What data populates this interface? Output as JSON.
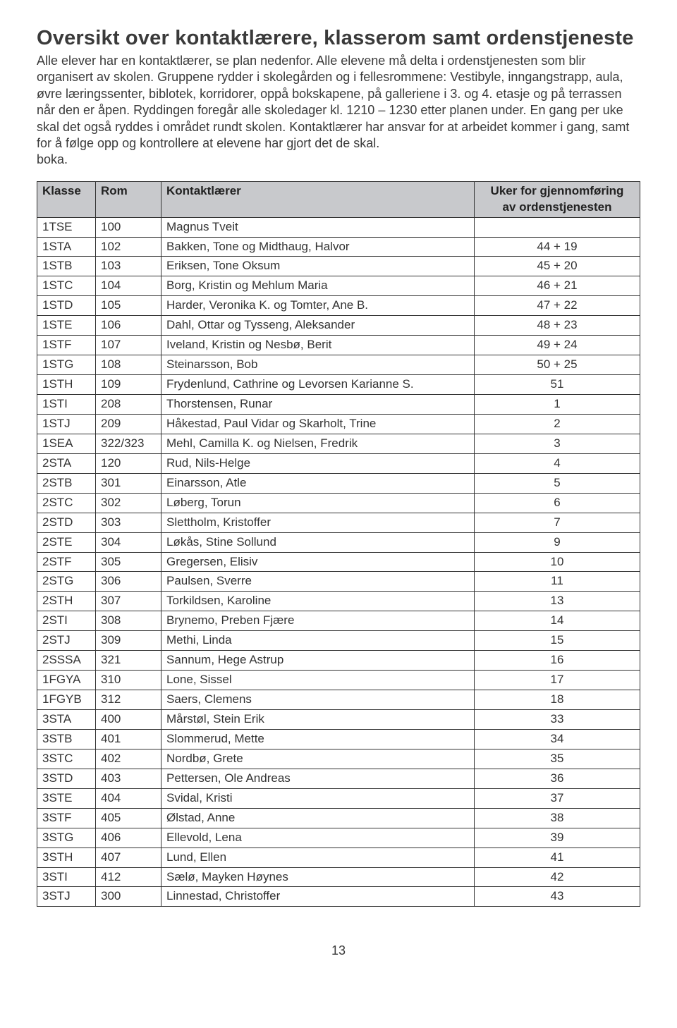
{
  "title": "Oversikt over kontaktlærere, klasserom samt ordenstjeneste",
  "paragraph": "Alle elever har en kontaktlærer, se plan nedenfor. Alle elevene må delta i ordenstjenesten som blir organisert av skolen. Gruppene rydder i skolegården og i fellesrommene: Vestibyle, inngangstrapp, aula, øvre læringssenter, biblotek, korridorer, oppå bokskapene, på galleriene i 3. og 4. etasje og på terrassen når den er åpen. Ryddingen foregår alle skoledager kl. 1210 – 1230 etter planen under. En gang per uke skal det også ryddes i området rundt skolen. Kontaktlærer har ansvar for at arbeidet kommer i gang, samt for å følge opp og kontrollere at elevene har gjort det de skal.",
  "paragraph_last": "boka.",
  "table": {
    "headers": {
      "klasse": "Klasse",
      "rom": "Rom",
      "laerer": "Kontaktlærer",
      "uker_l1": "Uker for gjennomføring",
      "uker_l2": "av ordenstjenesten"
    },
    "header_bg": "#c8c9cc",
    "border_color": "#333333",
    "rows": [
      {
        "klasse": "1TSE",
        "rom": "100",
        "laerer": "Magnus Tveit",
        "uker": ""
      },
      {
        "klasse": "1STA",
        "rom": "102",
        "laerer": "Bakken, Tone og Midthaug, Halvor",
        "uker": "44 + 19"
      },
      {
        "klasse": "1STB",
        "rom": "103",
        "laerer": "Eriksen, Tone Oksum",
        "uker": "45 + 20"
      },
      {
        "klasse": "1STC",
        "rom": "104",
        "laerer": "Borg, Kristin og Mehlum Maria",
        "uker": "46 + 21"
      },
      {
        "klasse": "1STD",
        "rom": "105",
        "laerer": "Harder, Veronika K. og Tomter, Ane B.",
        "uker": "47 + 22"
      },
      {
        "klasse": "1STE",
        "rom": "106",
        "laerer": "Dahl, Ottar og Tysseng, Aleksander",
        "uker": "48 + 23"
      },
      {
        "klasse": "1STF",
        "rom": "107",
        "laerer": "Iveland, Kristin og Nesbø, Berit",
        "uker": "49 + 24"
      },
      {
        "klasse": "1STG",
        "rom": "108",
        "laerer": "Steinarsson, Bob",
        "uker": "50 + 25"
      },
      {
        "klasse": "1STH",
        "rom": "109",
        "laerer": "Frydenlund, Cathrine og Levorsen Karianne S.",
        "uker": "51"
      },
      {
        "klasse": "1STI",
        "rom": "208",
        "laerer": "Thorstensen, Runar",
        "uker": "1"
      },
      {
        "klasse": "1STJ",
        "rom": "209",
        "laerer": "Håkestad, Paul Vidar og Skarholt, Trine",
        "uker": "2"
      },
      {
        "klasse": "1SEA",
        "rom": "322/323",
        "laerer": "Mehl, Camilla K. og Nielsen, Fredrik",
        "uker": "3"
      },
      {
        "klasse": "2STA",
        "rom": "120",
        "laerer": "Rud, Nils-Helge",
        "uker": "4"
      },
      {
        "klasse": "2STB",
        "rom": "301",
        "laerer": "Einarsson, Atle",
        "uker": "5"
      },
      {
        "klasse": "2STC",
        "rom": "302",
        "laerer": "Løberg, Torun",
        "uker": "6"
      },
      {
        "klasse": "2STD",
        "rom": "303",
        "laerer": "Slettholm, Kristoffer",
        "uker": "7"
      },
      {
        "klasse": "2STE",
        "rom": "304",
        "laerer": "Løkås, Stine Sollund",
        "uker": "9"
      },
      {
        "klasse": "2STF",
        "rom": "305",
        "laerer": "Gregersen, Elisiv",
        "uker": "10"
      },
      {
        "klasse": "2STG",
        "rom": "306",
        "laerer": "Paulsen, Sverre",
        "uker": "11"
      },
      {
        "klasse": "2STH",
        "rom": "307",
        "laerer": "Torkildsen, Karoline",
        "uker": "13"
      },
      {
        "klasse": "2STI",
        "rom": "308",
        "laerer": "Brynemo, Preben Fjære",
        "uker": "14"
      },
      {
        "klasse": "2STJ",
        "rom": "309",
        "laerer": "Methi, Linda",
        "uker": "15"
      },
      {
        "klasse": "2SSSA",
        "rom": "321",
        "laerer": "Sannum, Hege Astrup",
        "uker": "16"
      },
      {
        "klasse": "1FGYA",
        "rom": "310",
        "laerer": "Lone, Sissel",
        "uker": "17"
      },
      {
        "klasse": "1FGYB",
        "rom": "312",
        "laerer": "Saers, Clemens",
        "uker": "18"
      },
      {
        "klasse": "3STA",
        "rom": "400",
        "laerer": "Mårstøl, Stein Erik",
        "uker": "33"
      },
      {
        "klasse": "3STB",
        "rom": "401",
        "laerer": "Slommerud, Mette",
        "uker": "34"
      },
      {
        "klasse": "3STC",
        "rom": "402",
        "laerer": "Nordbø, Grete",
        "uker": "35"
      },
      {
        "klasse": "3STD",
        "rom": "403",
        "laerer": "Pettersen, Ole Andreas",
        "uker": "36"
      },
      {
        "klasse": "3STE",
        "rom": "404",
        "laerer": "Svidal, Kristi",
        "uker": "37"
      },
      {
        "klasse": "3STF",
        "rom": "405",
        "laerer": "Ølstad, Anne",
        "uker": "38"
      },
      {
        "klasse": "3STG",
        "rom": "406",
        "laerer": "Ellevold, Lena",
        "uker": "39"
      },
      {
        "klasse": "3STH",
        "rom": "407",
        "laerer": "Lund, Ellen",
        "uker": "41"
      },
      {
        "klasse": "3STI",
        "rom": "412",
        "laerer": "Sælø, Mayken Høynes",
        "uker": "42"
      },
      {
        "klasse": "3STJ",
        "rom": "300",
        "laerer": "Linnestad, Christoffer",
        "uker": "43"
      }
    ]
  },
  "page_number": "13"
}
